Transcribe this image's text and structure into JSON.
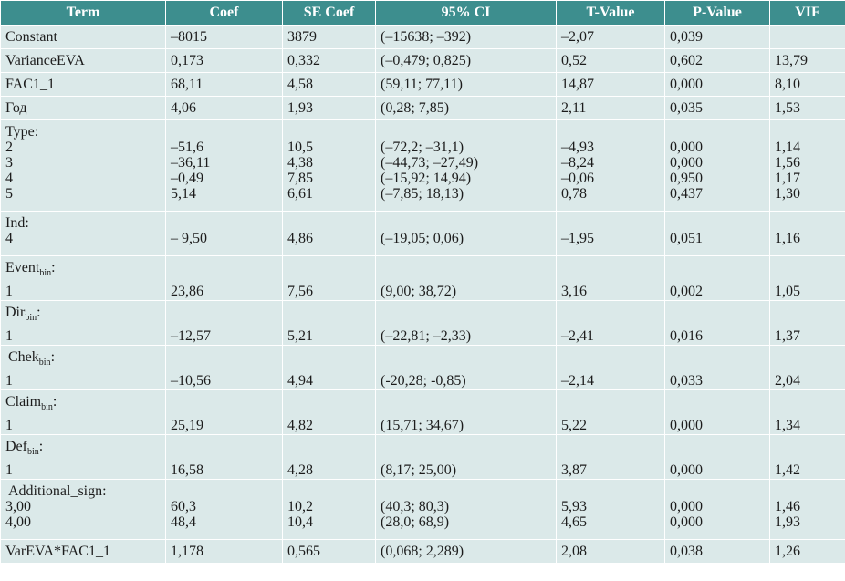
{
  "header": [
    "Term",
    "Coef",
    "SE Coef",
    "95% CI",
    "T-Value",
    "P-Value",
    "VIF"
  ],
  "rows": [
    {
      "term": [
        "Constant"
      ],
      "coef": [
        "–8015"
      ],
      "se": [
        "3879"
      ],
      "ci": [
        "(–15638; –392)"
      ],
      "t": [
        "–2,07"
      ],
      "p": [
        "0,039"
      ],
      "vif": [
        ""
      ]
    },
    {
      "term": [
        "VarianceEVA"
      ],
      "coef": [
        "0,173"
      ],
      "se": [
        "0,332"
      ],
      "ci": [
        "(–0,479; 0,825)"
      ],
      "t": [
        "0,52"
      ],
      "p": [
        "0,602"
      ],
      "vif": [
        "13,79"
      ]
    },
    {
      "term": [
        "FAC1_1"
      ],
      "coef": [
        "68,11"
      ],
      "se": [
        "4,58"
      ],
      "ci": [
        "(59,11; 77,11)"
      ],
      "t": [
        "14,87"
      ],
      "p": [
        "0,000"
      ],
      "vif": [
        "8,10"
      ]
    },
    {
      "term": [
        "Год"
      ],
      "coef": [
        "4,06"
      ],
      "se": [
        "1,93"
      ],
      "ci": [
        "(0,28; 7,85)"
      ],
      "t": [
        "2,11"
      ],
      "p": [
        "0,035"
      ],
      "vif": [
        "1,53"
      ]
    },
    {
      "head": "Type:",
      "term": [
        "2",
        "3",
        "4",
        "5"
      ],
      "coef": [
        "–51,6",
        "–36,11",
        "–0,49",
        "5,14"
      ],
      "se": [
        "10,5",
        "4,38",
        "7,85",
        "6,61"
      ],
      "ci": [
        "(–72,2; –31,1)",
        "(–44,73; –27,49)",
        "(–15,92; 14,94)",
        "(–7,85; 18,13)"
      ],
      "t": [
        "–4,93",
        "–8,24",
        "–0,06",
        "0,78"
      ],
      "p": [
        "0,000",
        "0,000",
        "0,950",
        "0,437"
      ],
      "vif": [
        "1,14",
        "1,56",
        "1,17",
        "1,30"
      ]
    },
    {
      "head": "Ind:",
      "term": [
        "4"
      ],
      "coef": [
        "– 9,50"
      ],
      "se": [
        "4,86"
      ],
      "ci": [
        "(–19,05; 0,06)"
      ],
      "t": [
        "–1,95"
      ],
      "p": [
        "0,051"
      ],
      "vif": [
        "1,16"
      ]
    },
    {
      "head": "Event",
      "sub": "bin",
      "suffix": ":",
      "term": [
        "1"
      ],
      "coef": [
        "23,86"
      ],
      "se": [
        "7,56"
      ],
      "ci": [
        "(9,00; 38,72)"
      ],
      "t": [
        "3,16"
      ],
      "p": [
        "0,002"
      ],
      "vif": [
        "1,05"
      ]
    },
    {
      "head": "Dir",
      "sub": "bin",
      "suffix": ":",
      "term": [
        "1"
      ],
      "coef": [
        "–12,57"
      ],
      "se": [
        "5,21"
      ],
      "ci": [
        "(–22,81; –2,33)"
      ],
      "t": [
        "–2,41"
      ],
      "p": [
        "0,016"
      ],
      "vif": [
        "1,37"
      ]
    },
    {
      "head": "Chek",
      "sub": "bin",
      "suffix": ":",
      "indent": true,
      "term": [
        "1"
      ],
      "coef": [
        "–10,56"
      ],
      "se": [
        "4,94"
      ],
      "ci": [
        "(-20,28; -0,85)"
      ],
      "t": [
        "–2,14"
      ],
      "p": [
        "0,033"
      ],
      "vif": [
        "2,04"
      ]
    },
    {
      "head": "Claim",
      "sub": "bin",
      "suffix": ":",
      "term": [
        "1"
      ],
      "coef": [
        "25,19"
      ],
      "se": [
        "4,82"
      ],
      "ci": [
        "(15,71; 34,67)"
      ],
      "t": [
        "5,22"
      ],
      "p": [
        "0,000"
      ],
      "vif": [
        "1,34"
      ]
    },
    {
      "head": "Def",
      "sub": "bin",
      "suffix": ":",
      "term": [
        "1"
      ],
      "coef": [
        "16,58"
      ],
      "se": [
        "4,28"
      ],
      "ci": [
        "(8,17; 25,00)"
      ],
      "t": [
        "3,87"
      ],
      "p": [
        "0,000"
      ],
      "vif": [
        "1,42"
      ]
    },
    {
      "head": "Additional_sign:",
      "indent": true,
      "term": [
        "3,00",
        "4,00"
      ],
      "coef": [
        "60,3",
        "48,4"
      ],
      "se": [
        "10,2",
        "10,4"
      ],
      "ci": [
        "(40,3; 80,3)",
        "(28,0; 68,9)"
      ],
      "t": [
        "5,93",
        "4,65"
      ],
      "p": [
        "0,000",
        "0,000"
      ],
      "vif": [
        "1,46",
        "1,93"
      ]
    },
    {
      "term": [
        "VarEVA*FAC1_1"
      ],
      "coef": [
        "1,178"
      ],
      "se": [
        "0,565"
      ],
      "ci": [
        "(0,068; 2,289)"
      ],
      "t": [
        "2,08"
      ],
      "p": [
        "0,038"
      ],
      "vif": [
        "1,26"
      ]
    }
  ],
  "colors": {
    "header_bg": "#3d8e8e",
    "row_bg": "#dbe9e9",
    "border": "#ffffff"
  }
}
